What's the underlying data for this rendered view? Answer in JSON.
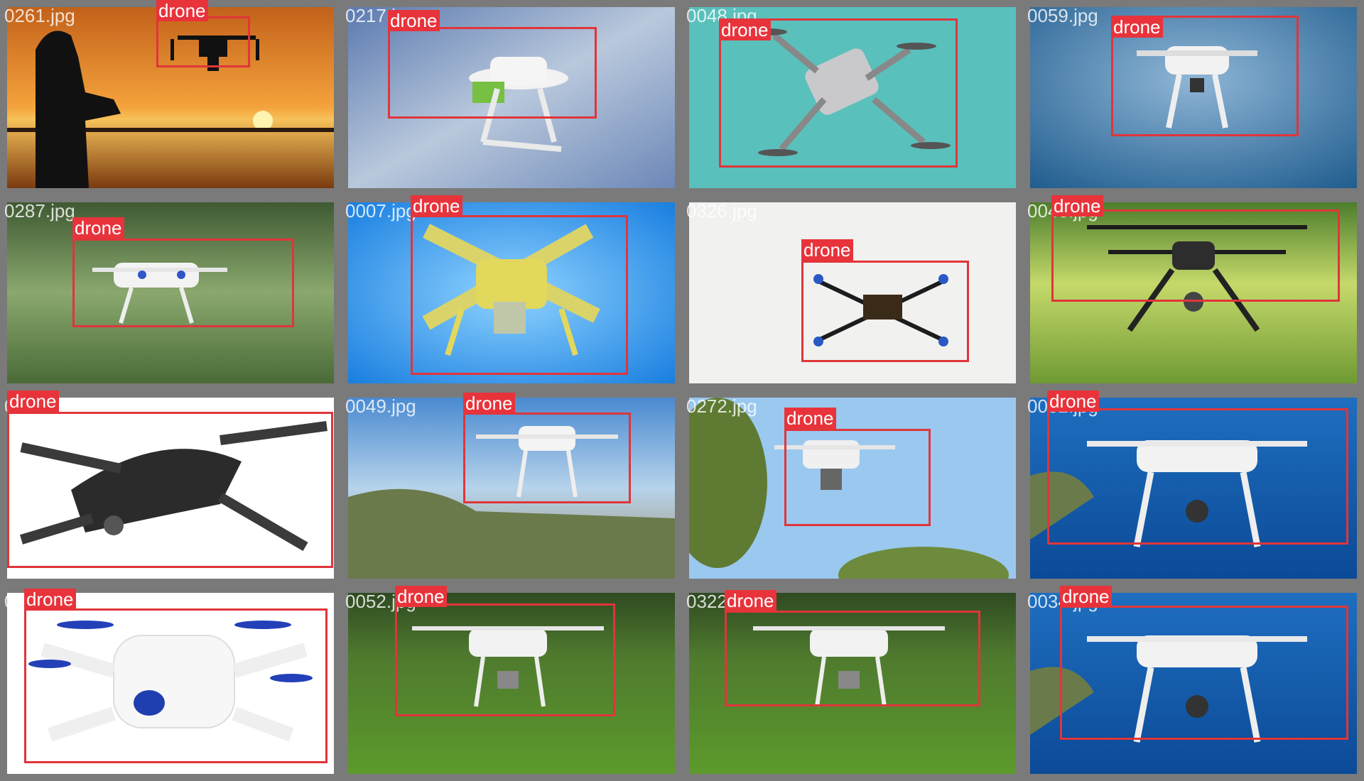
{
  "grid": {
    "tiles": [
      {
        "filename": "0261.jpg",
        "label": "drone"
      },
      {
        "filename": "0217.jpg",
        "label": "drone"
      },
      {
        "filename": "0048.jpg",
        "label": "drone"
      },
      {
        "filename": "0059.jpg",
        "label": "drone"
      },
      {
        "filename": "0287.jpg",
        "label": "drone"
      },
      {
        "filename": "0007.jpg",
        "label": "drone"
      },
      {
        "filename": "0326.jpg",
        "label": "drone"
      },
      {
        "filename": "0046.jpg",
        "label": "drone"
      },
      {
        "filename": "0_016.jpg",
        "label": "drone"
      },
      {
        "filename": "0049.jpg",
        "label": "drone"
      },
      {
        "filename": "0272.jpg",
        "label": "drone"
      },
      {
        "filename": "0032.jpg",
        "label": "drone"
      },
      {
        "filename": "0310.jpg",
        "label": "drone"
      },
      {
        "filename": "0052.jpg",
        "label": "drone"
      },
      {
        "filename": "0322.jpg",
        "label": "drone"
      },
      {
        "filename": "0034.jpg",
        "label": "drone"
      }
    ]
  },
  "colors": {
    "box": "#e0353a",
    "label_bg": "#e8333b",
    "tile_border": "#7a7a7a"
  }
}
